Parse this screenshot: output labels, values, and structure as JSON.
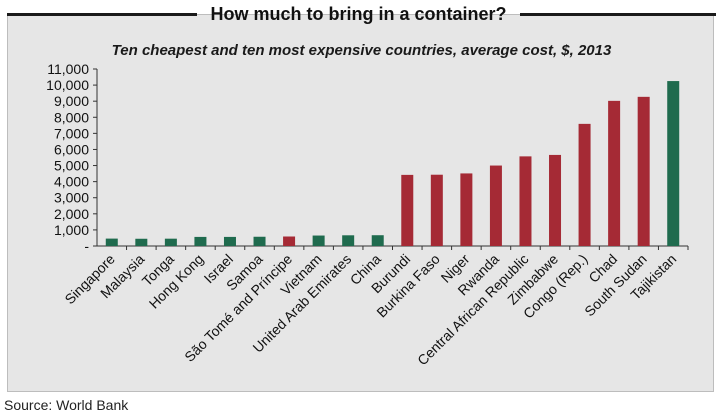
{
  "title": "How much to bring in a container?",
  "subtitle": "Ten cheapest and ten most expensive countries, average cost, $, 2013",
  "source": "Source: World Bank",
  "colors": {
    "cheap": "#1f6b4e",
    "expensive": "#a52a35",
    "panel": "#e6e6e6"
  },
  "chart_data": {
    "type": "bar",
    "title": "Ten cheapest and ten most expensive countries, average cost, $, 2013",
    "xlabel": "",
    "ylabel": "",
    "ylim": [
      0,
      11000
    ],
    "yticks": [
      0,
      1000,
      2000,
      3000,
      4000,
      5000,
      6000,
      7000,
      8000,
      9000,
      10000,
      11000
    ],
    "ytick_labels": [
      "-",
      "1,000",
      "2,000",
      "3,000",
      "4,000",
      "5,000",
      "6,000",
      "7,000",
      "8,000",
      "9,000",
      "10,000",
      "11,000"
    ],
    "grid": false,
    "categories": [
      "Singapore",
      "Malaysia",
      "Tonga",
      "Hong Kong",
      "Israel",
      "Samoa",
      "São Tomé and Príncipe",
      "Vietnam",
      "United Arab Emirates",
      "China",
      "Burundi",
      "Burkina Faso",
      "Niger",
      "Rwanda",
      "Central African Republic",
      "Zimbabwe",
      "Congo (Rep.)",
      "Chad",
      "South Sudan",
      "Tajikistan"
    ],
    "values": [
      460,
      450,
      455,
      565,
      565,
      575,
      590,
      650,
      665,
      670,
      4420,
      4430,
      4510,
      5000,
      5570,
      5660,
      7590,
      9020,
      9270,
      10250
    ],
    "bar_colors": [
      "cheap",
      "cheap",
      "cheap",
      "cheap",
      "cheap",
      "cheap",
      "expensive",
      "cheap",
      "cheap",
      "cheap",
      "expensive",
      "expensive",
      "expensive",
      "expensive",
      "expensive",
      "expensive",
      "expensive",
      "expensive",
      "expensive",
      "cheap"
    ]
  }
}
